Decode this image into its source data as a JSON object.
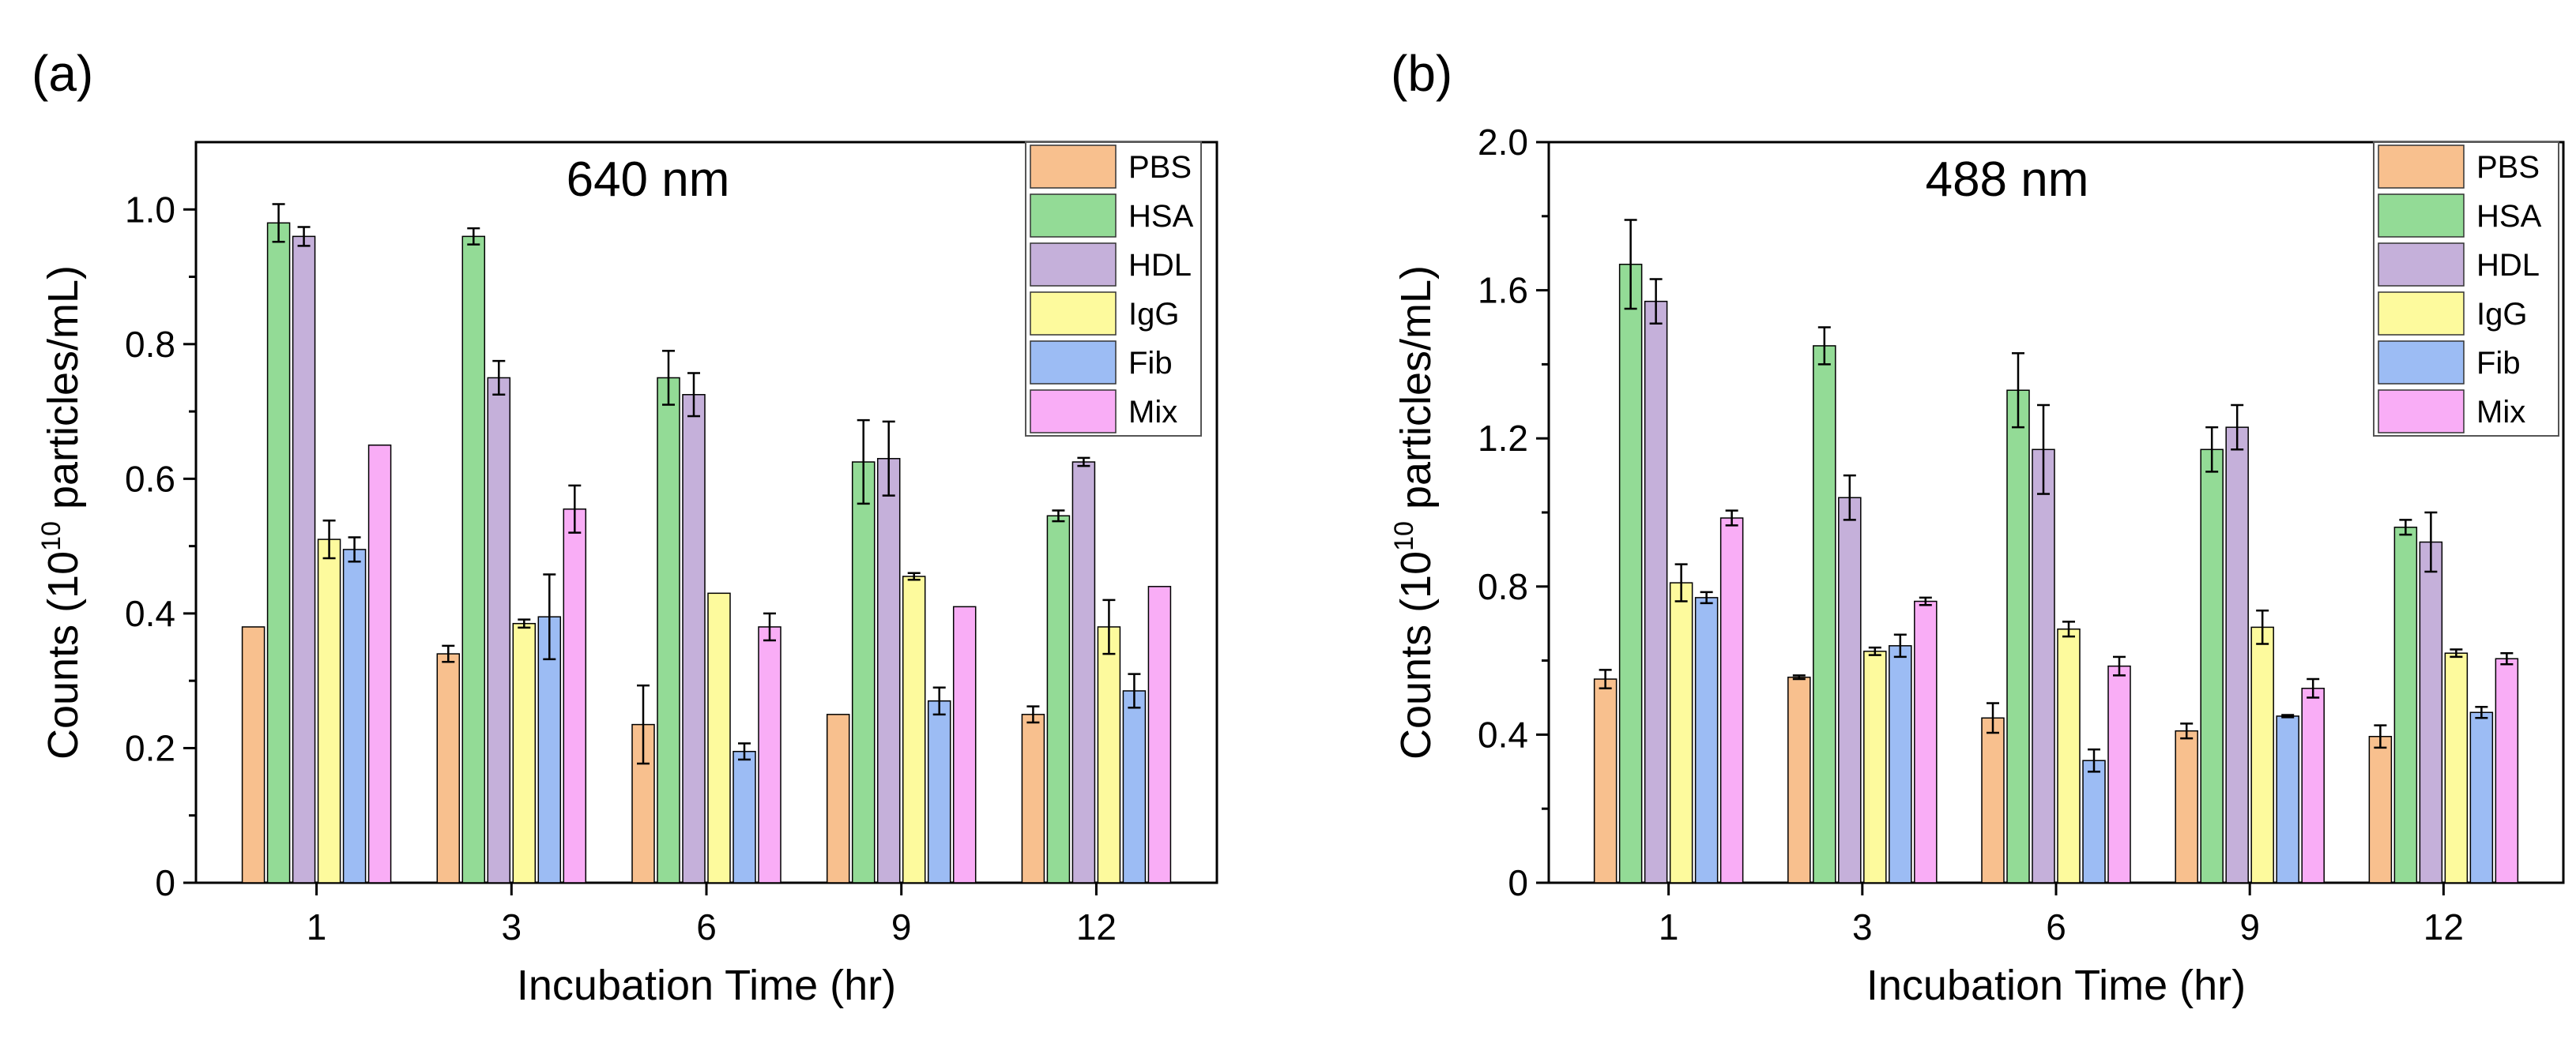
{
  "series_colors": {
    "PBS": "#F8C08E",
    "HSA": "#93DB96",
    "HDL": "#C5B0DA",
    "IgG": "#FDFA9D",
    "Fib": "#9CBCF4",
    "Mix": "#F9ADF6"
  },
  "chart_data": [
    {
      "type": "bar",
      "panel_label": "(a)",
      "title": "640 nm",
      "xlabel": "Incubation Time (hr)",
      "ylabel_prefix": "Counts (10",
      "ylabel_exp": "10",
      "ylabel_suffix": " particles/mL)",
      "categories": [
        "1",
        "3",
        "6",
        "9",
        "12"
      ],
      "ylim": [
        0,
        1.1
      ],
      "yticks": [
        0,
        0.2,
        0.4,
        0.6,
        0.8,
        1.0
      ],
      "ytick_labels": [
        "0",
        "0.2",
        "0.4",
        "0.6",
        "0.8",
        "1.0"
      ],
      "legend_position": "top-right",
      "series": [
        {
          "name": "PBS",
          "values": [
            0.38,
            0.34,
            0.235,
            0.25,
            0.25
          ],
          "errors": [
            0,
            0.012,
            0.058,
            0,
            0.012
          ]
        },
        {
          "name": "HSA",
          "values": [
            0.98,
            0.96,
            0.75,
            0.625,
            0.545
          ],
          "errors": [
            0.028,
            0.012,
            0.04,
            0.062,
            0.008
          ]
        },
        {
          "name": "HDL",
          "values": [
            0.96,
            0.75,
            0.725,
            0.63,
            0.625
          ],
          "errors": [
            0.014,
            0.025,
            0.032,
            0.055,
            0.006
          ]
        },
        {
          "name": "IgG",
          "values": [
            0.51,
            0.385,
            0.43,
            0.455,
            0.38
          ],
          "errors": [
            0.028,
            0.006,
            0,
            0.005,
            0.04
          ]
        },
        {
          "name": "Fib",
          "values": [
            0.495,
            0.395,
            0.195,
            0.27,
            0.285
          ],
          "errors": [
            0.018,
            0.063,
            0.012,
            0.02,
            0.025
          ]
        },
        {
          "name": "Mix",
          "values": [
            0.65,
            0.555,
            0.38,
            0.41,
            0.44
          ],
          "errors": [
            0,
            0.035,
            0.02,
            0,
            0
          ]
        }
      ]
    },
    {
      "type": "bar",
      "panel_label": "(b)",
      "title": "488 nm",
      "xlabel": "Incubation Time (hr)",
      "ylabel_prefix": "Counts (10",
      "ylabel_exp": "10",
      "ylabel_suffix": " particles/mL)",
      "categories": [
        "1",
        "3",
        "6",
        "9",
        "12"
      ],
      "ylim": [
        0,
        2.0
      ],
      "yticks": [
        0,
        0.4,
        0.8,
        1.2,
        1.6,
        2.0
      ],
      "ytick_labels": [
        "0",
        "0.4",
        "0.8",
        "1.2",
        "1.6",
        "2.0"
      ],
      "legend_position": "top-right",
      "series": [
        {
          "name": "PBS",
          "values": [
            0.55,
            0.555,
            0.445,
            0.41,
            0.395
          ],
          "errors": [
            0.025,
            0.005,
            0.04,
            0.02,
            0.03
          ]
        },
        {
          "name": "HSA",
          "values": [
            1.67,
            1.45,
            1.33,
            1.17,
            0.96
          ],
          "errors": [
            0.12,
            0.05,
            0.1,
            0.06,
            0.02
          ]
        },
        {
          "name": "HDL",
          "values": [
            1.57,
            1.04,
            1.17,
            1.23,
            0.92
          ],
          "errors": [
            0.06,
            0.06,
            0.12,
            0.06,
            0.08
          ]
        },
        {
          "name": "IgG",
          "values": [
            0.81,
            0.625,
            0.685,
            0.69,
            0.62
          ],
          "errors": [
            0.05,
            0.01,
            0.02,
            0.045,
            0.01
          ]
        },
        {
          "name": "Fib",
          "values": [
            0.77,
            0.64,
            0.33,
            0.45,
            0.46
          ],
          "errors": [
            0.015,
            0.03,
            0.03,
            0.003,
            0.015
          ]
        },
        {
          "name": "Mix",
          "values": [
            0.985,
            0.76,
            0.585,
            0.525,
            0.605
          ],
          "errors": [
            0.02,
            0.01,
            0.025,
            0.025,
            0.015
          ]
        }
      ]
    }
  ]
}
